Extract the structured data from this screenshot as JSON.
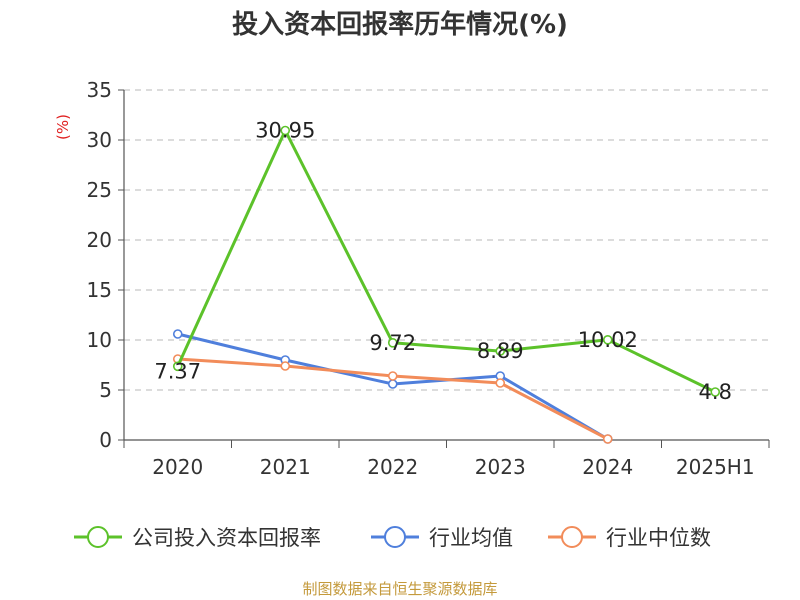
{
  "chart_data": {
    "type": "line",
    "title": "投入资本回报率历年情况(%)",
    "ylabel": "(%)",
    "categories": [
      "2020",
      "2021",
      "2022",
      "2023",
      "2024",
      "2025H1"
    ],
    "ylim": [
      0,
      35
    ],
    "yticks": [
      0,
      5,
      10,
      15,
      20,
      25,
      30,
      35
    ],
    "grid": true,
    "legend_position": "bottom",
    "series": [
      {
        "name": "公司投入资本回报率",
        "color": "#5cc22a",
        "values": [
          7.37,
          30.95,
          9.72,
          8.89,
          10.02,
          4.8
        ],
        "labels": [
          "7.37",
          "30.95",
          "9.72",
          "8.89",
          "10.02",
          "4.8"
        ]
      },
      {
        "name": "行业均值",
        "color": "#4f7fdc",
        "values": [
          10.6,
          8.0,
          5.6,
          6.4,
          0.1,
          null
        ]
      },
      {
        "name": "行业中位数",
        "color": "#f28c5a",
        "values": [
          8.1,
          7.4,
          6.4,
          5.7,
          0.1,
          null
        ]
      }
    ]
  },
  "footer": {
    "source": "制图数据来自恒生聚源数据库"
  }
}
